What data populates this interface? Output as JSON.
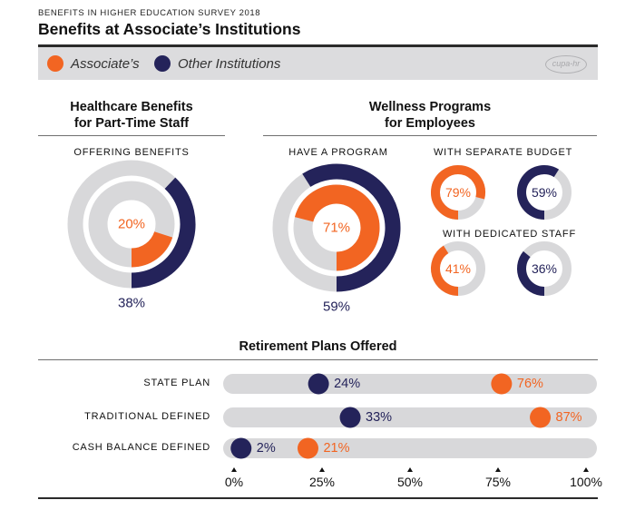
{
  "header": {
    "kicker": "BENEFITS IN HIGHER EDUCATION SURVEY 2018",
    "title": "Benefits at Associate’s Institutions"
  },
  "legend": {
    "items": [
      {
        "label": "Associate’s",
        "color": "#f26522"
      },
      {
        "label": "Other Institutions",
        "color": "#24235a"
      }
    ],
    "logo_text": "cupa-hr"
  },
  "colors": {
    "associates": "#f26522",
    "other": "#24235a",
    "track": "#d8d8da"
  },
  "healthcare": {
    "title_line1": "Healthcare Benefits",
    "title_line2": "for Part-Time Staff",
    "offering_label": "OFFERING BENEFITS"
  },
  "wellness": {
    "title_line1": "Wellness Programs",
    "title_line2": "for Employees",
    "have_label": "HAVE A PROGRAM",
    "budget_label": "WITH SEPARATE BUDGET",
    "staff_label": "WITH DEDICATED STAFF"
  },
  "retirement": {
    "title": "Retirement Plans Offered"
  },
  "chart_data": [
    {
      "type": "pie",
      "title": "Healthcare Benefits for Part-Time Staff — Offering Benefits",
      "series": [
        {
          "name": "Associate's",
          "value": 20,
          "label": "20%"
        },
        {
          "name": "Other Institutions",
          "value": 38,
          "label": "38%"
        }
      ]
    },
    {
      "type": "pie",
      "title": "Wellness Programs for Employees — Have a Program",
      "series": [
        {
          "name": "Associate's",
          "value": 71,
          "label": "71%"
        },
        {
          "name": "Other Institutions",
          "value": 59,
          "label": "59%"
        }
      ]
    },
    {
      "type": "pie",
      "title": "With Separate Budget",
      "series": [
        {
          "name": "Associate's",
          "value": 79,
          "label": "79%"
        },
        {
          "name": "Other Institutions",
          "value": 59,
          "label": "59%"
        }
      ]
    },
    {
      "type": "pie",
      "title": "With Dedicated Staff",
      "series": [
        {
          "name": "Associate's",
          "value": 41,
          "label": "41%"
        },
        {
          "name": "Other Institutions",
          "value": 36,
          "label": "36%"
        }
      ]
    },
    {
      "type": "scatter",
      "title": "Retirement Plans Offered",
      "categories": [
        "STATE PLAN",
        "TRADITIONAL DEFINED",
        "CASH BALANCE DEFINED"
      ],
      "series": [
        {
          "name": "Other Institutions",
          "values": [
            24,
            33,
            2
          ],
          "labels": [
            "24%",
            "33%",
            "2%"
          ]
        },
        {
          "name": "Associate's",
          "values": [
            76,
            87,
            21
          ],
          "labels": [
            "76%",
            "87%",
            "21%"
          ]
        }
      ],
      "xlim": [
        0,
        100
      ],
      "xticks": [
        0,
        25,
        50,
        75,
        100
      ],
      "xtick_labels": [
        "0%",
        "25%",
        "50%",
        "75%",
        "100%"
      ]
    }
  ]
}
